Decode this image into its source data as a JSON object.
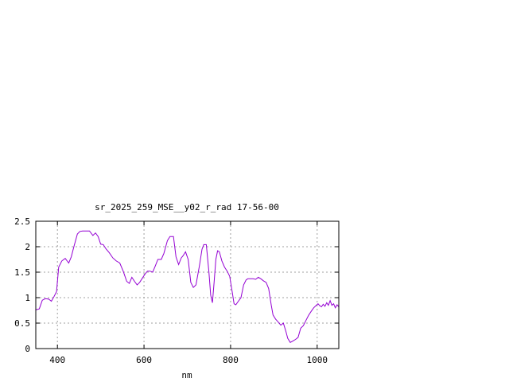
{
  "chart_data": {
    "type": "line",
    "title": "sr_2025_259_MSE__y02_r_rad 17-56-00",
    "xlabel": "nm",
    "ylabel": "",
    "xlim": [
      350,
      1050
    ],
    "ylim": [
      0,
      2.5
    ],
    "x_ticks": [
      400,
      600,
      800,
      1000
    ],
    "x_tick_labels": [
      "400",
      "600",
      "800",
      "1000"
    ],
    "y_ticks": [
      0,
      0.5,
      1,
      1.5,
      2,
      2.5
    ],
    "y_tick_labels": [
      "0",
      "0.5",
      "1",
      "1.5",
      "2",
      "2.5"
    ],
    "grid": true,
    "legend": "none",
    "colors": {
      "series": "#9400d3",
      "grid": "#a0a0a0",
      "frame": "#000000"
    },
    "series": [
      {
        "x": [
          350,
          358,
          365,
          372,
          380,
          386,
          392,
          398,
          403,
          410,
          418,
          426,
          432,
          438,
          446,
          452,
          458,
          466,
          474,
          482,
          488,
          494,
          500,
          506,
          512,
          520,
          528,
          536,
          544,
          552,
          556,
          560,
          566,
          572,
          578,
          584,
          590,
          596,
          602,
          608,
          614,
          620,
          626,
          632,
          640,
          646,
          654,
          660,
          668,
          674,
          680,
          686,
          690,
          696,
          702,
          708,
          714,
          720,
          728,
          734,
          738,
          744,
          750,
          754,
          758,
          762,
          766,
          770,
          774,
          780,
          786,
          792,
          798,
          804,
          808,
          812,
          818,
          824,
          830,
          836,
          840,
          846,
          852,
          858,
          864,
          870,
          876,
          882,
          888,
          894,
          898,
          904,
          910,
          916,
          922,
          928,
          932,
          938,
          944,
          950,
          956,
          962,
          968,
          974,
          980,
          986,
          992,
          998,
          1002,
          1006,
          1010,
          1014,
          1018,
          1022,
          1026,
          1030,
          1034,
          1038,
          1042,
          1046,
          1050
        ],
        "values": [
          0.76,
          0.78,
          0.95,
          0.98,
          0.97,
          0.93,
          1.02,
          1.12,
          1.6,
          1.72,
          1.77,
          1.68,
          1.8,
          2.0,
          2.25,
          2.3,
          2.31,
          2.31,
          2.31,
          2.22,
          2.27,
          2.2,
          2.05,
          2.04,
          1.96,
          1.88,
          1.78,
          1.72,
          1.68,
          1.52,
          1.42,
          1.32,
          1.28,
          1.4,
          1.32,
          1.25,
          1.3,
          1.38,
          1.46,
          1.52,
          1.52,
          1.5,
          1.62,
          1.75,
          1.75,
          1.87,
          2.12,
          2.2,
          2.2,
          1.8,
          1.65,
          1.78,
          1.82,
          1.9,
          1.75,
          1.3,
          1.2,
          1.25,
          1.62,
          1.95,
          2.04,
          2.04,
          1.5,
          1.05,
          0.9,
          1.3,
          1.75,
          1.92,
          1.9,
          1.72,
          1.6,
          1.52,
          1.42,
          1.1,
          0.88,
          0.86,
          0.93,
          1.0,
          1.25,
          1.35,
          1.37,
          1.37,
          1.37,
          1.36,
          1.4,
          1.37,
          1.33,
          1.3,
          1.18,
          0.85,
          0.66,
          0.58,
          0.52,
          0.46,
          0.5,
          0.33,
          0.2,
          0.12,
          0.15,
          0.18,
          0.22,
          0.4,
          0.45,
          0.55,
          0.65,
          0.73,
          0.8,
          0.85,
          0.88,
          0.84,
          0.82,
          0.87,
          0.83,
          0.9,
          0.85,
          0.94,
          0.85,
          0.88,
          0.8,
          0.86,
          0.82
        ]
      }
    ]
  }
}
